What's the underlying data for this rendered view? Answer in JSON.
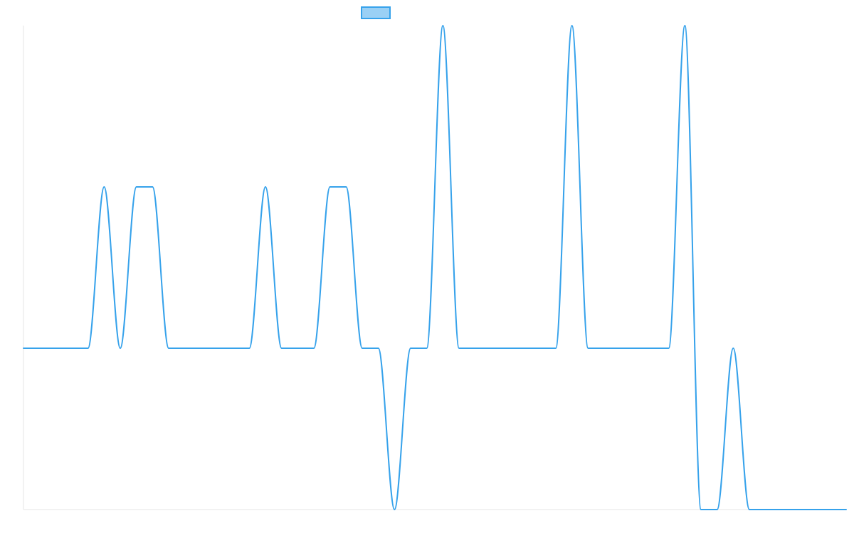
{
  "chart_data": {
    "type": "line",
    "title": "",
    "xlabel": "",
    "ylabel": "",
    "grid": false,
    "legend": {
      "placement": "top-center",
      "entries": [
        {
          "name": "",
          "swatch_fill": "#9ad0f5",
          "swatch_stroke": "#36a2eb"
        }
      ]
    },
    "xlim": [
      0,
      51
    ],
    "ylim": [
      -1,
      2
    ],
    "series": [
      {
        "name": "",
        "color": "#36a2eb",
        "x": [
          0,
          3,
          4,
          5,
          6,
          7,
          8,
          9,
          10,
          13,
          14,
          15,
          16,
          17,
          18,
          19,
          20,
          21,
          22,
          23,
          24,
          25,
          26,
          27,
          28,
          29,
          30,
          33,
          34,
          35,
          36,
          37,
          38,
          40,
          41,
          42,
          43,
          44,
          45,
          51
        ],
        "y": [
          0,
          0,
          0,
          1,
          0,
          1,
          1,
          0,
          0,
          0,
          0,
          1,
          0,
          0,
          0,
          1,
          1,
          0,
          0,
          -1,
          0,
          0,
          2,
          0,
          0,
          0,
          0,
          0,
          2,
          0,
          0,
          0,
          0,
          0,
          2,
          -1,
          -1,
          0,
          -1,
          -1
        ]
      }
    ]
  }
}
